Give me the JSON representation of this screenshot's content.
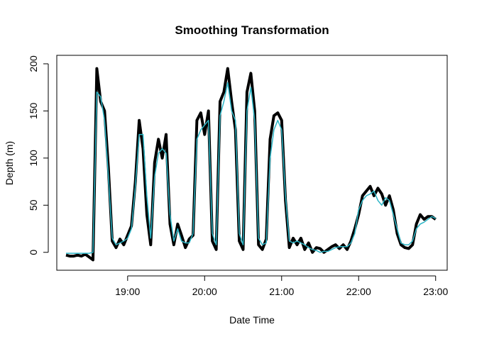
{
  "chart_data": {
    "type": "line",
    "title": "Smoothing Transformation",
    "x_label": "Date Time",
    "y_label": "Depth (m)",
    "x": [
      18.2,
      18.25,
      18.3,
      18.35,
      18.4,
      18.45,
      18.5,
      18.55,
      18.6,
      18.65,
      18.7,
      18.75,
      18.8,
      18.85,
      18.9,
      18.95,
      19.0,
      19.05,
      19.1,
      19.15,
      19.2,
      19.25,
      19.3,
      19.35,
      19.4,
      19.45,
      19.5,
      19.55,
      19.6,
      19.65,
      19.7,
      19.75,
      19.8,
      19.85,
      19.9,
      19.95,
      20.0,
      20.05,
      20.1,
      20.15,
      20.2,
      20.25,
      20.3,
      20.35,
      20.4,
      20.45,
      20.5,
      20.55,
      20.6,
      20.65,
      20.7,
      20.75,
      20.8,
      20.85,
      20.9,
      20.95,
      21.0,
      21.05,
      21.1,
      21.15,
      21.2,
      21.25,
      21.3,
      21.35,
      21.4,
      21.45,
      21.5,
      21.55,
      21.6,
      21.65,
      21.7,
      21.75,
      21.8,
      21.85,
      21.9,
      21.95,
      22.0,
      22.05,
      22.1,
      22.15,
      22.2,
      22.25,
      22.3,
      22.35,
      22.4,
      22.45,
      22.5,
      22.55,
      22.6,
      22.65,
      22.7,
      22.75,
      22.8,
      22.85,
      22.9,
      22.95,
      23.0
    ],
    "series": [
      {
        "color": "#000000",
        "values": [
          -3,
          -4,
          -4,
          -3,
          -4,
          -2,
          -5,
          -8,
          195,
          160,
          150,
          90,
          12,
          5,
          14,
          8,
          18,
          28,
          75,
          140,
          110,
          40,
          8,
          95,
          120,
          100,
          125,
          30,
          8,
          30,
          18,
          5,
          14,
          18,
          140,
          148,
          125,
          150,
          12,
          3,
          160,
          170,
          195,
          160,
          130,
          12,
          3,
          170,
          190,
          150,
          8,
          3,
          14,
          120,
          145,
          148,
          140,
          55,
          5,
          15,
          8,
          15,
          3,
          10,
          0,
          5,
          4,
          0,
          3,
          6,
          8,
          4,
          8,
          3,
          12,
          25,
          40,
          60,
          65,
          70,
          60,
          68,
          62,
          50,
          60,
          45,
          20,
          8,
          5,
          4,
          8,
          30,
          40,
          35,
          38,
          38,
          35
        ]
      },
      {
        "color": "#2bb5c6",
        "values": [
          -1,
          -1,
          -1,
          -1,
          -1,
          -1,
          -1,
          0,
          170,
          165,
          140,
          80,
          15,
          8,
          10,
          12,
          15,
          25,
          70,
          125,
          125,
          60,
          15,
          80,
          105,
          110,
          105,
          40,
          12,
          25,
          12,
          10,
          10,
          20,
          120,
          130,
          135,
          140,
          20,
          8,
          145,
          160,
          180,
          150,
          140,
          20,
          8,
          150,
          175,
          140,
          15,
          8,
          10,
          100,
          130,
          140,
          130,
          60,
          12,
          10,
          12,
          10,
          8,
          5,
          3,
          2,
          0,
          1,
          1,
          3,
          5,
          6,
          6,
          6,
          10,
          20,
          45,
          55,
          60,
          62,
          65,
          55,
          50,
          58,
          55,
          40,
          25,
          10,
          8,
          8,
          12,
          25,
          30,
          32,
          35,
          38,
          36
        ]
      }
    ],
    "xlim": [
      18.08,
      23.15
    ],
    "ylim": [
      -19,
      209
    ],
    "xticks": [
      {
        "value": 19,
        "label": "19:00"
      },
      {
        "value": 20,
        "label": "20:00"
      },
      {
        "value": 21,
        "label": "21:00"
      },
      {
        "value": 22,
        "label": "22:00"
      },
      {
        "value": 23,
        "label": "23:00"
      }
    ],
    "yticks": [
      0,
      50,
      100,
      150,
      200
    ]
  }
}
